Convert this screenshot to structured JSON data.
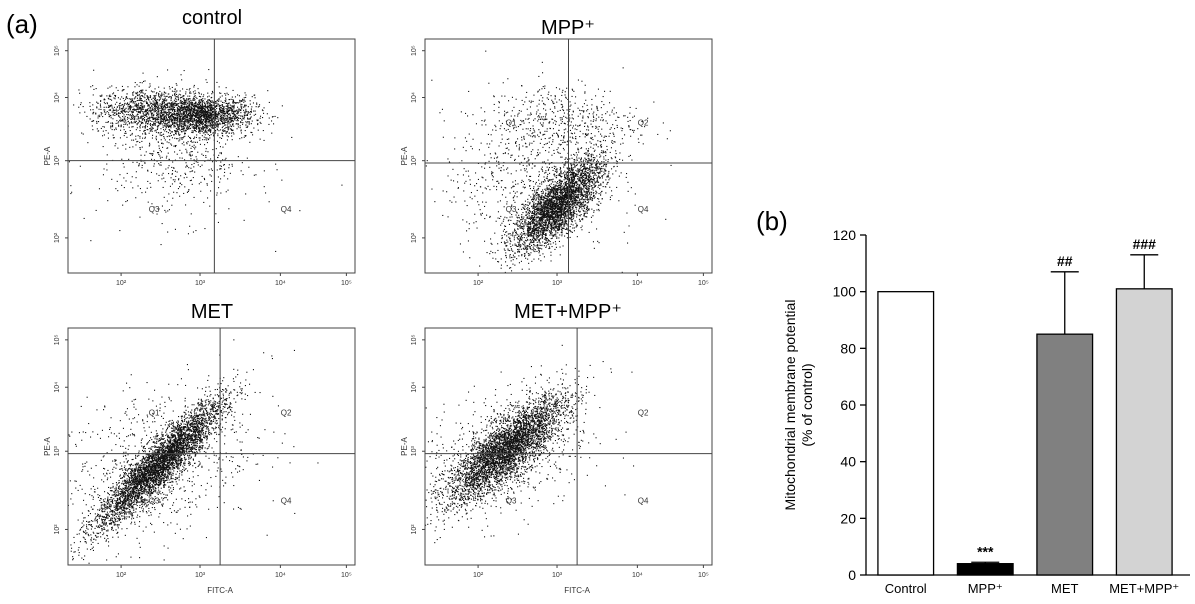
{
  "panel_labels": {
    "a": "(a)",
    "b": "(b)"
  },
  "chart_data": [
    {
      "type": "scatter",
      "title": "control",
      "xlabel": "",
      "ylabel": "PE-A",
      "x_ticks": [
        "10²",
        "10³",
        "10⁴",
        "10⁵"
      ],
      "y_ticks": [
        "10²",
        "10³",
        "10⁴",
        "10⁵"
      ],
      "quadrants": [
        "",
        "",
        "Q3",
        "Q4"
      ],
      "points": 3500,
      "clusters": [
        {
          "cx": 3.2,
          "cy": 4.0,
          "sx": 0.35,
          "sy": 0.17,
          "w": 0.45,
          "rho": 0.1
        },
        {
          "cx": 2.5,
          "cy": 4.1,
          "sx": 0.45,
          "sy": 0.2,
          "w": 0.4,
          "rho": 0.0
        },
        {
          "cx": 2.8,
          "cy": 3.3,
          "sx": 0.55,
          "sy": 0.55,
          "w": 0.15,
          "rho": 0.0
        }
      ]
    },
    {
      "type": "scatter",
      "title": "MPP⁺",
      "xlabel": "",
      "ylabel": "PE-A",
      "x_ticks": [
        "10²",
        "10³",
        "10⁴",
        "10⁵"
      ],
      "y_ticks": [
        "10²",
        "10³",
        "10⁴",
        "10⁵"
      ],
      "quadrants": [
        "Q1",
        "Q2",
        "Q3",
        "Q4"
      ],
      "points": 4500,
      "clusters": [
        {
          "cx": 3.15,
          "cy": 2.45,
          "sx": 0.32,
          "sy": 0.4,
          "w": 0.75,
          "rho": 0.75
        },
        {
          "cx": 3.2,
          "cy": 3.9,
          "sx": 0.55,
          "sy": 0.35,
          "w": 0.12,
          "rho": 0.0
        },
        {
          "cx": 2.7,
          "cy": 2.8,
          "sx": 0.6,
          "sy": 0.6,
          "w": 0.13,
          "rho": 0.0
        }
      ]
    },
    {
      "type": "scatter",
      "title": "MET",
      "xlabel": "FITC-A",
      "ylabel": "PE-A",
      "x_ticks": [
        "10²",
        "10³",
        "10⁴",
        "10⁵"
      ],
      "y_ticks": [
        "10²",
        "10³",
        "10⁴",
        "10⁵"
      ],
      "quadrants": [
        "Q1",
        "Q2",
        "Q3",
        "Q4"
      ],
      "points": 5000,
      "clusters": [
        {
          "cx": 2.55,
          "cy": 3.0,
          "sx": 0.45,
          "sy": 0.55,
          "w": 0.85,
          "rho": 0.92
        },
        {
          "cx": 2.5,
          "cy": 3.0,
          "sx": 0.7,
          "sy": 0.7,
          "w": 0.15,
          "rho": 0.3
        }
      ]
    },
    {
      "type": "scatter",
      "title": "MET+MPP⁺",
      "xlabel": "FITC-A",
      "ylabel": "PE-A",
      "x_ticks": [
        "10²",
        "10³",
        "10⁴",
        "10⁵"
      ],
      "y_ticks": [
        "10²",
        "10³",
        "10⁴",
        "10⁵"
      ],
      "quadrants": [
        "",
        "Q2",
        "Q3",
        "Q4"
      ],
      "points": 4500,
      "clusters": [
        {
          "cx": 2.4,
          "cy": 3.25,
          "sx": 0.42,
          "sy": 0.45,
          "w": 0.85,
          "rho": 0.82
        },
        {
          "cx": 2.4,
          "cy": 3.2,
          "sx": 0.6,
          "sy": 0.6,
          "w": 0.15,
          "rho": 0.3
        }
      ]
    },
    {
      "type": "bar",
      "title": "",
      "xlabel": "",
      "ylabel": "Mitochondrial membrane potential",
      "ylabel_unit": "(% of control)",
      "categories": [
        "Control",
        "MPP⁺",
        "MET",
        "MET+MPP⁺"
      ],
      "values": [
        100,
        4,
        85,
        101
      ],
      "errors": [
        0,
        0.5,
        22,
        12
      ],
      "significance": [
        "",
        "***",
        "##",
        "###"
      ],
      "colors": [
        "#ffffff",
        "#000000",
        "#808080",
        "#d3d3d3"
      ],
      "ylim": [
        0,
        120
      ],
      "yticks": [
        0,
        20,
        40,
        60,
        80,
        100,
        120
      ],
      "grid": false
    }
  ]
}
